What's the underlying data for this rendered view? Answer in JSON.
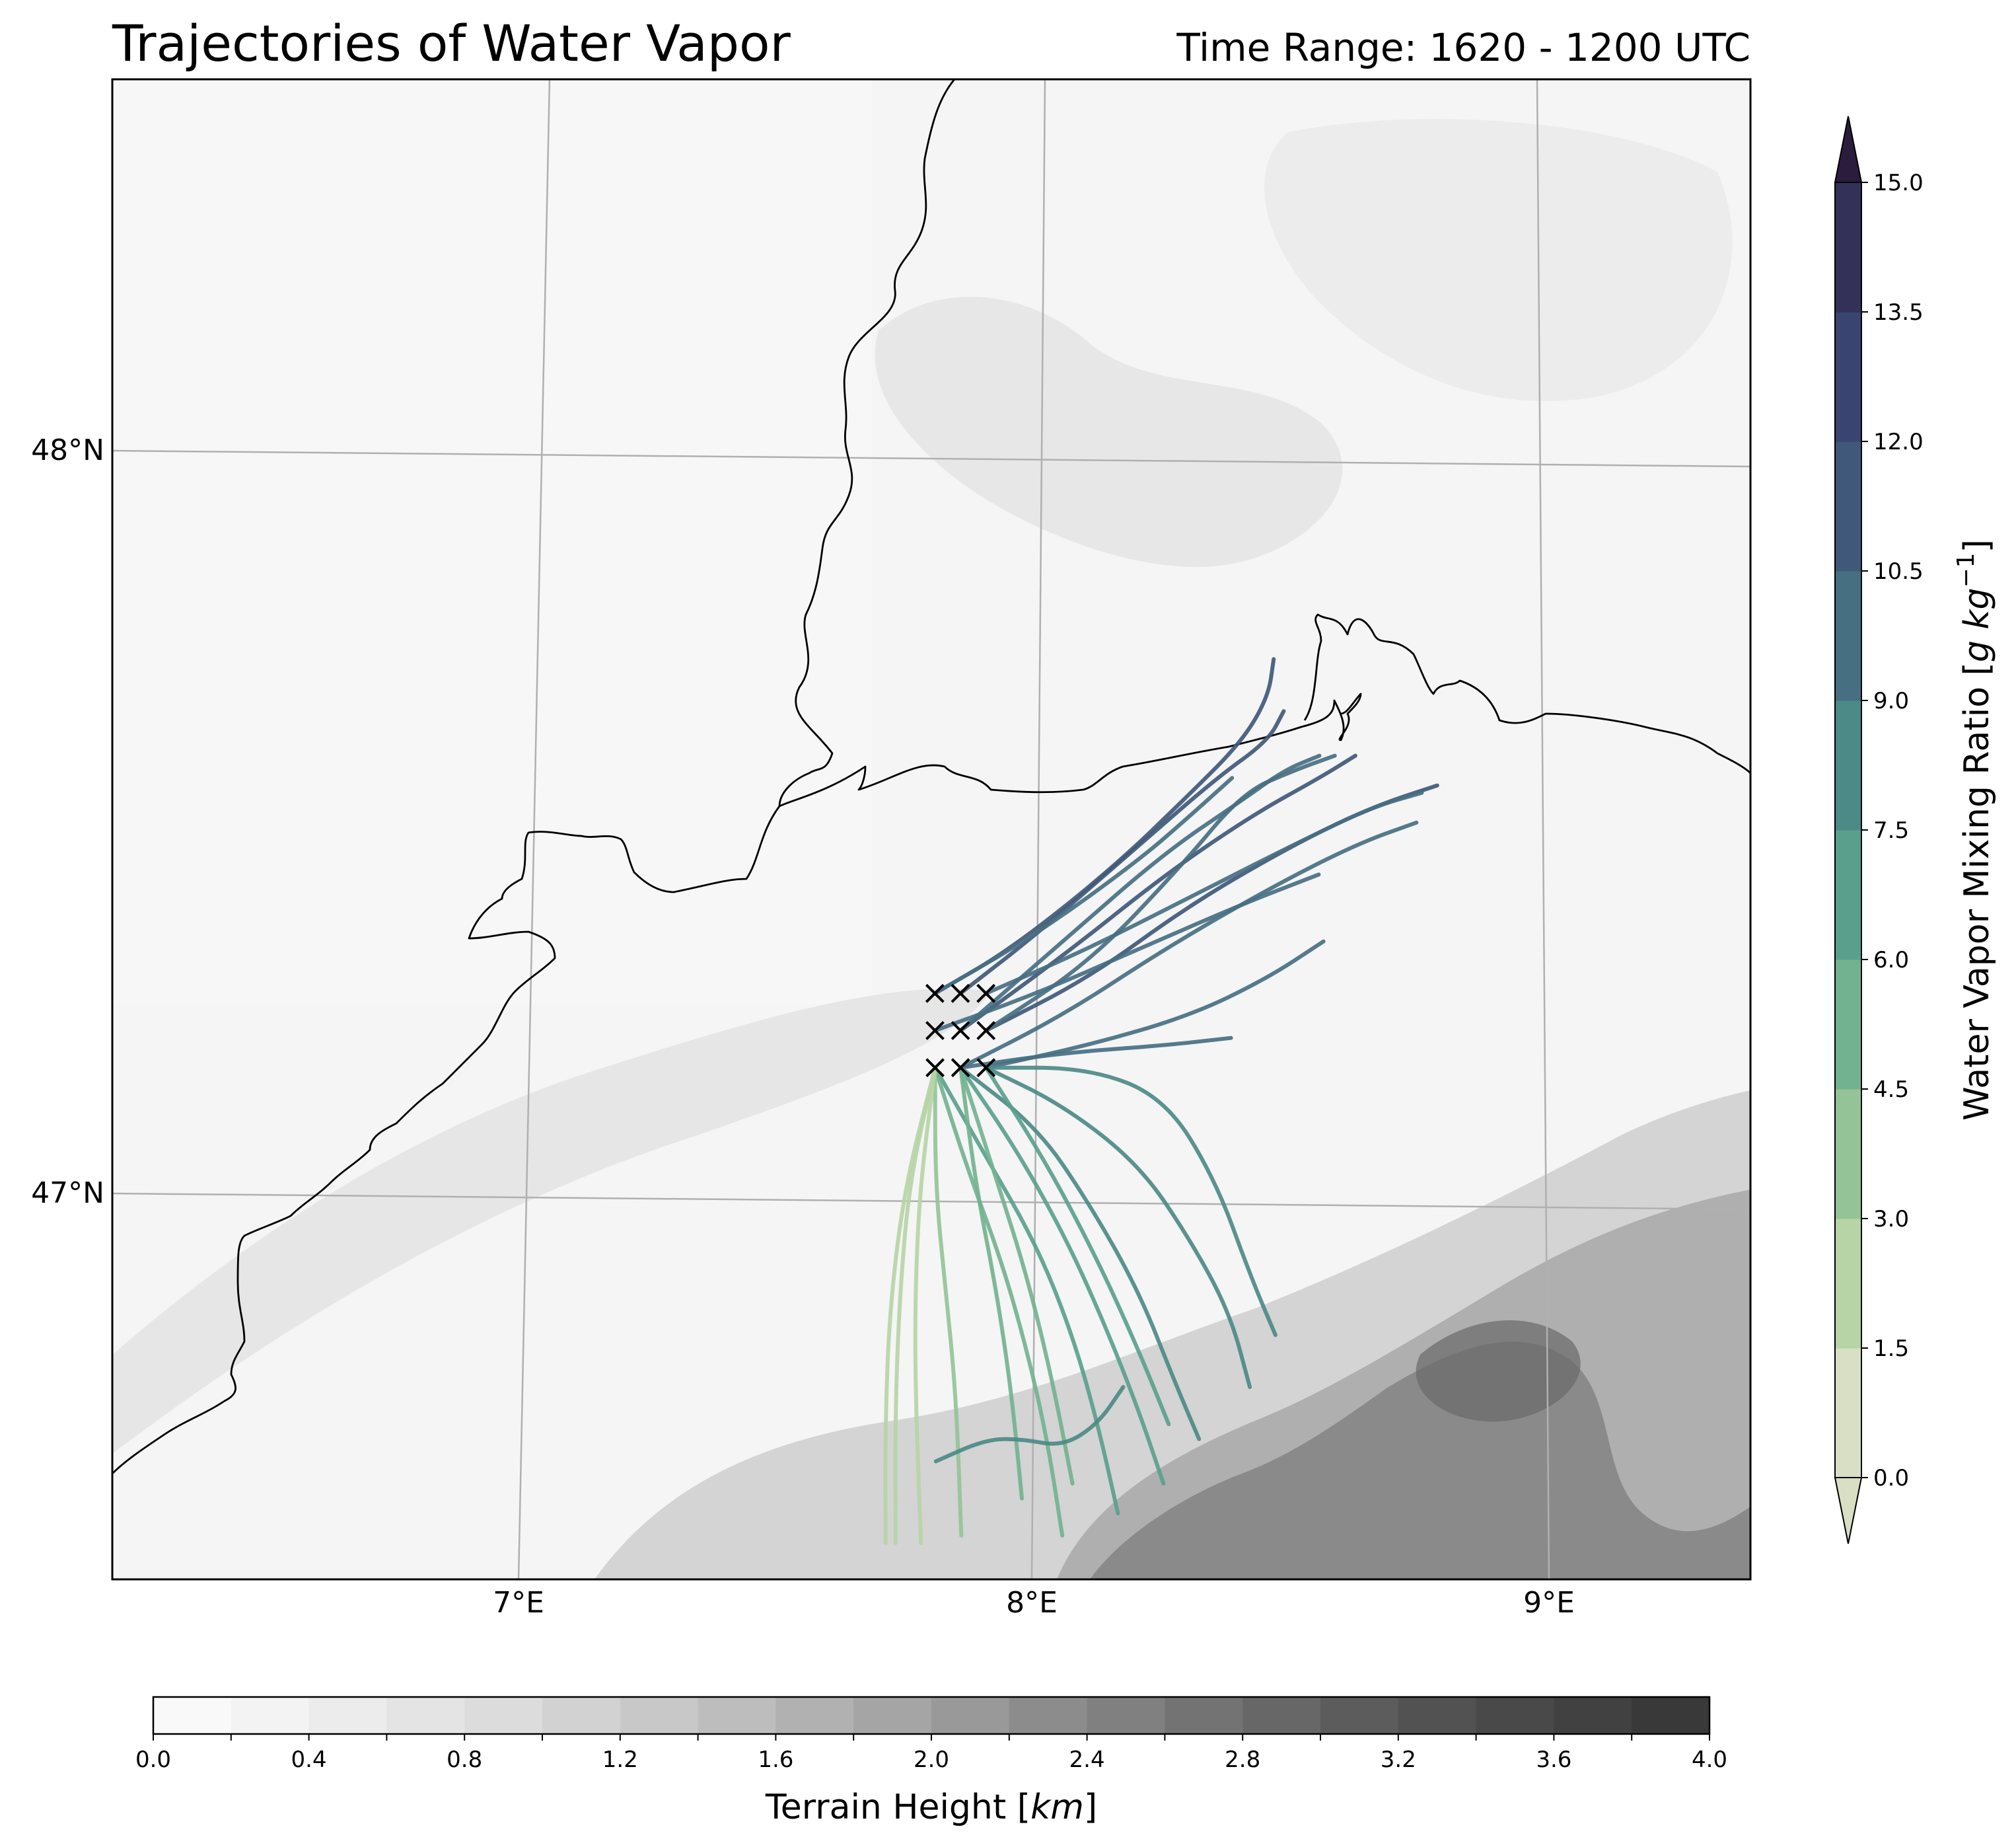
{
  "title": "Trajectories of Water Vapor",
  "subtitle": "Time Range: 1620 - 1200 UTC",
  "map": {
    "lat_labels": [
      "48°N",
      "47°N"
    ],
    "lon_labels": [
      "7°E",
      "8°E",
      "9°E"
    ],
    "release_points": [
      [
        7.8,
        47.28
      ],
      [
        7.85,
        47.28
      ],
      [
        7.9,
        47.28
      ],
      [
        7.8,
        47.23
      ],
      [
        7.85,
        47.23
      ],
      [
        7.9,
        47.23
      ],
      [
        7.8,
        47.18
      ],
      [
        7.85,
        47.18
      ],
      [
        7.9,
        47.18
      ]
    ]
  },
  "colorbar_vapor": {
    "label": "Water Vapor Mixing Ratio [g kg$^{-1}$]",
    "label_text": "Water Vapor Mixing Ratio [",
    "label_unit_g": "g",
    "label_unit_kg": "kg",
    "label_exp": "−1",
    "label_close": "]",
    "ticks": [
      "0.0",
      "1.5",
      "3.0",
      "4.5",
      "6.0",
      "7.5",
      "9.0",
      "10.5",
      "12.0",
      "13.5",
      "15.0"
    ],
    "colors": [
      "#d8dfc4",
      "#b6d4a6",
      "#94c397",
      "#73b290",
      "#5a9f8c",
      "#4c8a87",
      "#466f82",
      "#40587a",
      "#3a4470",
      "#343159",
      "#2b1c3d"
    ],
    "extend": "both"
  },
  "colorbar_terrain": {
    "label_text": "Terrain Height [",
    "label_unit": "km",
    "label_close": "]",
    "ticks": [
      "0.0",
      "0.4",
      "0.8",
      "1.2",
      "1.6",
      "2.0",
      "2.4",
      "2.8",
      "3.2",
      "3.6",
      "4.0"
    ],
    "colors": [
      "#f9f9f9",
      "#f3f3f3",
      "#ececec",
      "#e4e4e4",
      "#dcdcdc",
      "#d2d2d2",
      "#c8c8c8",
      "#bdbdbd",
      "#b1b1b1",
      "#a5a5a5",
      "#999999",
      "#8c8c8c",
      "#808080",
      "#737373",
      "#676767",
      "#5c5c5c",
      "#525252",
      "#494949",
      "#414141",
      "#393939"
    ]
  },
  "chart_data": {
    "type": "map",
    "map_extent_lon": [
      6.2,
      9.4
    ],
    "map_extent_lat": [
      46.52,
      48.55
    ],
    "trajectories": [
      {
        "values_gkg": 11.8,
        "lon": [
          7.8,
          7.95,
          8.15,
          8.3,
          8.4,
          8.45,
          8.46
        ],
        "lat": [
          47.28,
          47.34,
          47.45,
          47.55,
          47.62,
          47.68,
          47.73
        ]
      },
      {
        "values_gkg": 11.5,
        "lon": [
          7.85,
          8.0,
          8.2,
          8.35,
          8.45,
          8.48
        ],
        "lat": [
          47.28,
          47.36,
          47.48,
          47.57,
          47.62,
          47.66
        ]
      },
      {
        "values_gkg": 10.8,
        "lon": [
          7.85,
          8.05,
          8.25,
          8.42,
          8.55,
          8.62
        ],
        "lat": [
          47.23,
          47.33,
          47.44,
          47.52,
          47.57,
          47.6
        ]
      },
      {
        "values_gkg": 10.6,
        "lon": [
          7.9,
          8.1,
          8.3,
          8.5,
          8.65,
          8.78
        ],
        "lat": [
          47.23,
          47.3,
          47.4,
          47.48,
          47.53,
          47.56
        ]
      },
      {
        "values_gkg": 10.4,
        "lon": [
          7.9,
          8.1,
          8.3,
          8.5,
          8.65,
          8.75
        ],
        "lat": [
          47.28,
          47.34,
          47.41,
          47.48,
          47.53,
          47.55
        ]
      },
      {
        "values_gkg": 10.2,
        "lon": [
          7.85,
          8.05,
          8.25,
          8.45,
          8.62,
          8.74
        ],
        "lat": [
          47.18,
          47.25,
          47.34,
          47.42,
          47.48,
          47.51
        ]
      },
      {
        "values_gkg": 10.0,
        "lon": [
          7.8,
          8.0,
          8.2,
          8.4,
          8.55
        ],
        "lat": [
          47.23,
          47.28,
          47.34,
          47.4,
          47.44
        ]
      },
      {
        "values_gkg": 9.8,
        "lon": [
          7.9,
          8.1,
          8.3,
          8.45,
          8.56
        ],
        "lat": [
          47.18,
          47.21,
          47.25,
          47.3,
          47.35
        ]
      },
      {
        "values_gkg": 9.6,
        "lon": [
          7.85,
          8.05,
          8.25,
          8.38
        ],
        "lat": [
          47.18,
          47.2,
          47.21,
          47.22
        ]
      },
      {
        "values_gkg": 9.4,
        "lon": [
          7.8,
          8.0,
          8.2,
          8.3,
          8.38
        ],
        "lat": [
          47.28,
          47.36,
          47.46,
          47.52,
          47.57
        ]
      },
      {
        "values_gkg": 9.2,
        "lon": [
          7.85,
          8.05,
          8.25,
          8.4,
          8.48,
          8.55
        ],
        "lat": [
          47.23,
          47.35,
          47.47,
          47.54,
          47.58,
          47.6
        ]
      },
      {
        "values_gkg": 9.0,
        "lon": [
          7.9,
          8.1,
          8.28,
          8.4,
          8.5,
          8.58
        ],
        "lat": [
          47.23,
          47.32,
          47.45,
          47.55,
          47.58,
          47.6
        ]
      },
      {
        "values_gkg": 8.6,
        "lon": [
          7.9,
          8.1,
          8.25,
          8.35,
          8.42,
          8.47
        ],
        "lat": [
          47.18,
          47.18,
          47.14,
          47.03,
          46.9,
          46.82
        ]
      },
      {
        "values_gkg": 8.2,
        "lon": [
          7.9,
          8.05,
          8.2,
          8.3,
          8.38,
          8.42
        ],
        "lat": [
          47.18,
          47.13,
          47.05,
          46.95,
          46.85,
          46.75
        ]
      },
      {
        "values_gkg": 7.6,
        "lon": [
          7.85,
          8.0,
          8.1,
          8.2,
          8.27,
          8.32
        ],
        "lat": [
          47.18,
          47.1,
          47.0,
          46.88,
          46.76,
          46.68
        ]
      },
      {
        "values_gkg": 7.0,
        "lon": [
          7.85,
          7.95,
          8.05,
          8.13,
          8.2,
          8.25
        ],
        "lat": [
          47.18,
          47.08,
          46.96,
          46.84,
          46.72,
          46.62
        ]
      },
      {
        "values_gkg": 6.2,
        "lon": [
          7.8,
          7.9,
          8.0,
          8.07,
          8.12,
          8.16
        ],
        "lat": [
          47.18,
          47.06,
          46.94,
          46.82,
          46.7,
          46.58
        ]
      },
      {
        "values_gkg": 5.5,
        "lon": [
          7.8,
          7.86,
          7.93,
          7.98,
          8.02,
          8.05
        ],
        "lat": [
          47.18,
          47.05,
          46.92,
          46.8,
          46.68,
          46.55
        ]
      },
      {
        "values_gkg": 4.6,
        "lon": [
          7.85,
          7.88,
          7.92,
          7.95,
          7.97
        ],
        "lat": [
          47.18,
          47.02,
          46.88,
          46.74,
          46.6
        ]
      },
      {
        "values_gkg": 3.8,
        "lon": [
          7.8,
          7.8,
          7.82,
          7.84,
          7.85
        ],
        "lat": [
          47.18,
          47.02,
          46.88,
          46.74,
          46.55
        ]
      },
      {
        "values_gkg": 2.8,
        "lon": [
          7.8,
          7.77,
          7.76,
          7.76,
          7.77
        ],
        "lat": [
          47.18,
          47.02,
          46.88,
          46.74,
          46.54
        ]
      },
      {
        "values_gkg": 2.0,
        "lon": [
          7.8,
          7.75,
          7.73,
          7.72,
          7.72
        ],
        "lat": [
          47.18,
          47.03,
          46.88,
          46.72,
          46.54
        ]
      },
      {
        "values_gkg": 1.5,
        "lon": [
          7.8,
          7.74,
          7.71,
          7.7,
          7.7
        ],
        "lat": [
          47.18,
          47.02,
          46.86,
          46.7,
          46.54
        ]
      },
      {
        "values_gkg": 6.8,
        "lon": [
          7.9,
          8.02,
          8.12,
          8.2,
          8.26
        ],
        "lat": [
          47.18,
          47.05,
          46.92,
          46.8,
          46.7
        ]
      },
      {
        "values_gkg": 5.0,
        "lon": [
          7.85,
          7.92,
          7.98,
          8.03,
          8.07
        ],
        "lat": [
          47.18,
          47.03,
          46.9,
          46.76,
          46.62
        ]
      },
      {
        "values_gkg": 8.4,
        "lon": [
          7.8,
          7.9,
          7.97,
          8.05,
          8.12,
          8.17
        ],
        "lat": [
          46.65,
          46.68,
          46.68,
          46.67,
          46.7,
          46.75
        ]
      }
    ],
    "ylim": [
      46.52,
      48.55
    ],
    "xlim": [
      6.2,
      9.4
    ]
  }
}
